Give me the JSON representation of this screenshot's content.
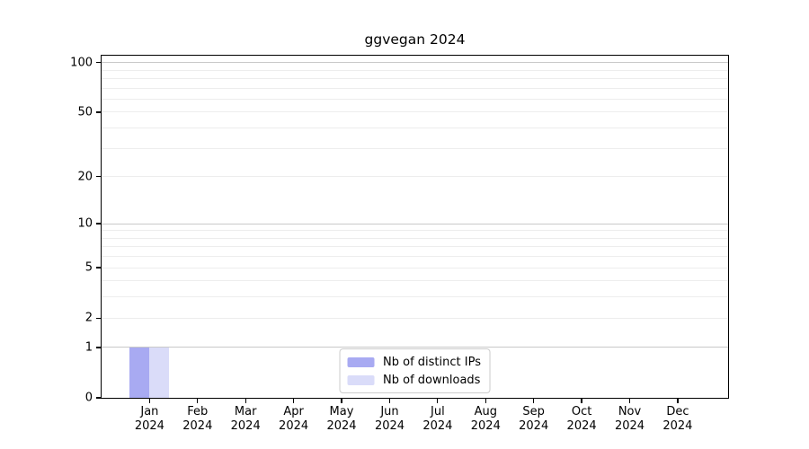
{
  "chart_data": {
    "type": "bar",
    "title": "ggvegan 2024",
    "xlabel": "",
    "ylabel": "",
    "categories": [
      "Jan",
      "Feb",
      "Mar",
      "Apr",
      "May",
      "Jun",
      "Jul",
      "Aug",
      "Sep",
      "Oct",
      "Nov",
      "Dec"
    ],
    "x_tick_sublabel": "2024",
    "series": [
      {
        "name": "Nb of distinct IPs",
        "color": "#a8aaf2",
        "values": [
          1,
          0,
          0,
          0,
          0,
          0,
          0,
          0,
          0,
          0,
          0,
          0
        ]
      },
      {
        "name": "Nb of downloads",
        "color": "#dadcf9",
        "values": [
          1,
          0,
          0,
          0,
          0,
          0,
          0,
          0,
          0,
          0,
          0,
          0
        ]
      }
    ],
    "yscale": "log1p",
    "ylim": [
      0,
      110
    ],
    "yticks": [
      0,
      1,
      2,
      5,
      10,
      20,
      50,
      100
    ],
    "major_gridlines": [
      1,
      10,
      100
    ],
    "minor_gridlines": [
      2,
      3,
      4,
      5,
      6,
      7,
      8,
      9,
      20,
      30,
      40,
      50,
      60,
      70,
      80,
      90
    ],
    "grid": true,
    "legend_position": "lower center"
  },
  "colors": {
    "background": "#ffffff",
    "axis": "#000000",
    "text": "#000000",
    "grid_minor": "#ededed",
    "grid_major": "#c9c9c9",
    "legend_border": "#cccccc"
  }
}
